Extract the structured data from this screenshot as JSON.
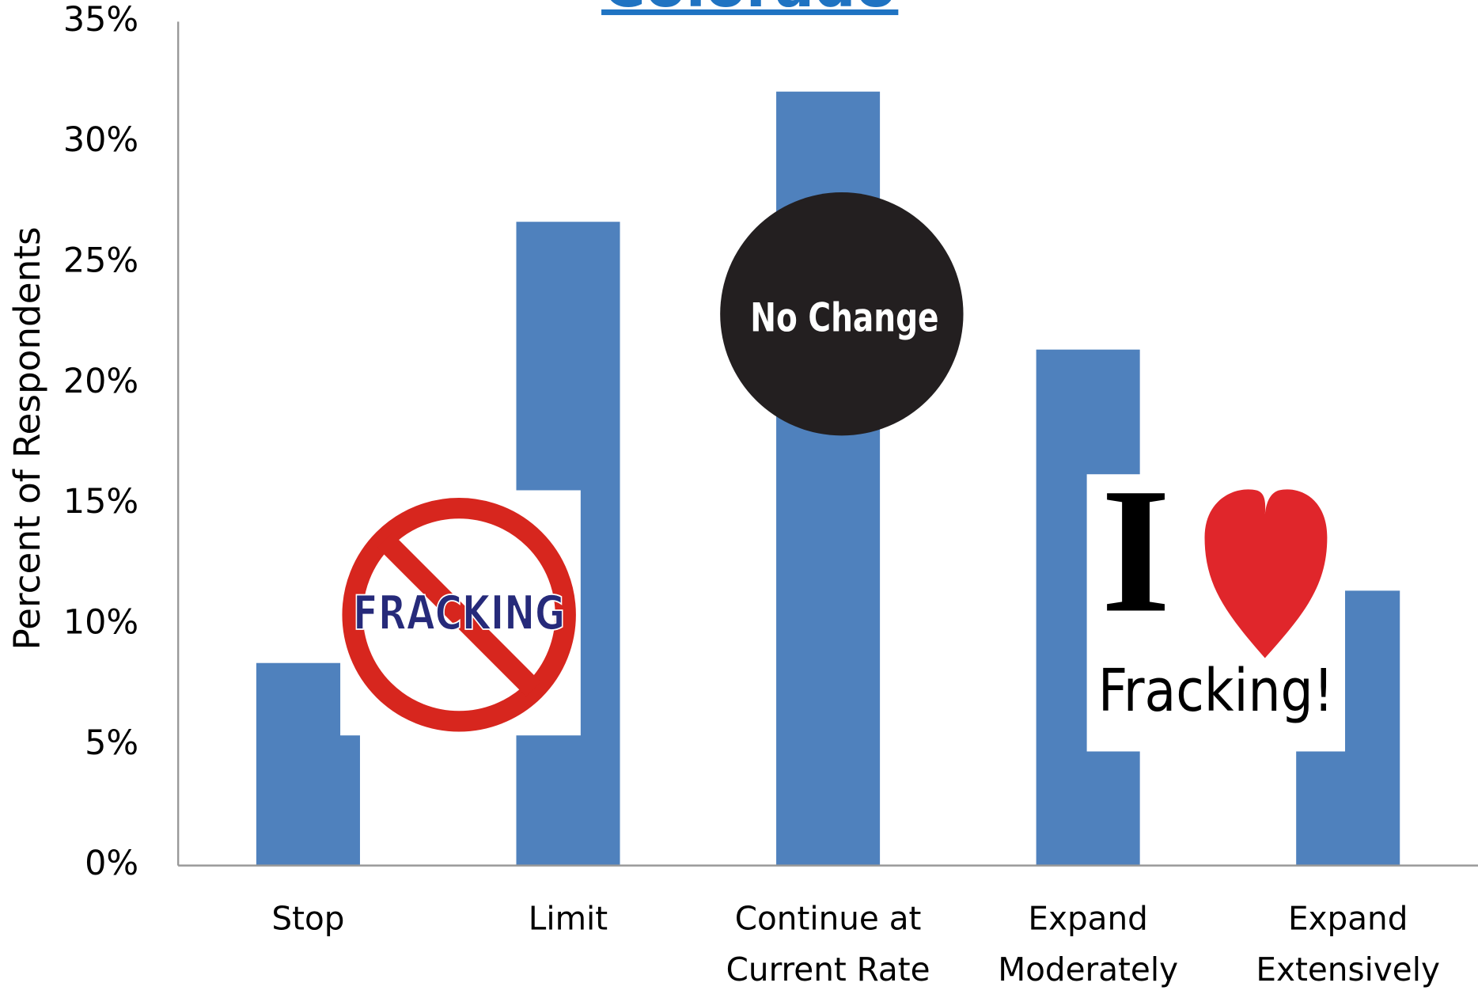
{
  "chart_data": {
    "type": "bar",
    "title": "Colorado",
    "y_label": "Percent of Respondents",
    "categories": [
      "Stop",
      "Limit",
      "Continue at Current Rate",
      "Expand Moderately",
      "Expand Extensively"
    ],
    "values": [
      8.4,
      26.7,
      32.1,
      21.4,
      11.4
    ],
    "color": "#4f81bd",
    "ylim": [
      0,
      35
    ],
    "yticks": [
      {
        "value": 0,
        "label": "0%"
      },
      {
        "value": 5,
        "label": "5%"
      },
      {
        "value": 10,
        "label": "10%"
      },
      {
        "value": 15,
        "label": "15%"
      },
      {
        "value": 20,
        "label": "20%"
      },
      {
        "value": 25,
        "label": "25%"
      },
      {
        "value": 30,
        "label": "30%"
      },
      {
        "value": 35,
        "label": "35%"
      }
    ],
    "grid": false,
    "annotations": [
      "FRACKING",
      "No Change",
      "I",
      "Fracking!"
    ]
  }
}
